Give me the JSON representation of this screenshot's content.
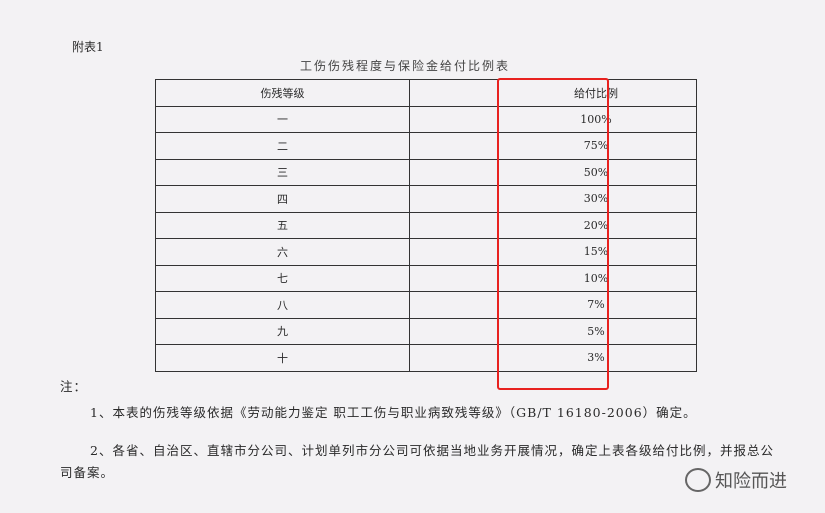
{
  "appendix_label": "附表1",
  "title": "工伤伤残程度与保险金给付比例表",
  "table": {
    "headers": [
      "伤残等级",
      "给付比例"
    ],
    "rows": [
      [
        "一",
        "100%"
      ],
      [
        "二",
        "75%"
      ],
      [
        "三",
        "50%"
      ],
      [
        "四",
        "30%"
      ],
      [
        "五",
        "20%"
      ],
      [
        "六",
        "15%"
      ],
      [
        "七",
        "10%"
      ],
      [
        "八",
        "7%"
      ],
      [
        "九",
        "5%"
      ],
      [
        "十",
        "3%"
      ]
    ]
  },
  "highlight_color": "#e8221f",
  "notes": {
    "heading": "注：",
    "items": [
      "1、本表的伤残等级依据《劳动能力鉴定 职工工伤与职业病致残等级》（GB/T 16180-2006）确定。",
      "2、各省、自治区、直辖市分公司、计划单列市分公司可依据当地业务开展情况，确定上表各级给付比例，并报总公司备案。"
    ]
  },
  "watermark": {
    "icon": "wechat-icon",
    "text": "知险而进"
  }
}
